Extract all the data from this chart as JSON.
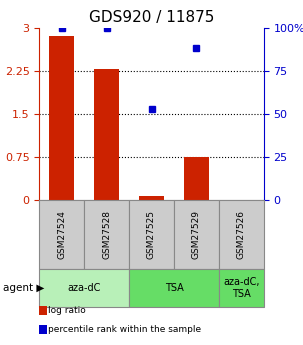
{
  "title": "GDS920 / 11875",
  "samples": [
    "GSM27524",
    "GSM27528",
    "GSM27525",
    "GSM27529",
    "GSM27526"
  ],
  "log_ratio": [
    2.85,
    2.28,
    0.07,
    0.75,
    0.0
  ],
  "percentile_rank": [
    100.0,
    100.0,
    53.0,
    88.0,
    0.0
  ],
  "ylim_left": [
    0,
    3
  ],
  "ylim_right": [
    0,
    100
  ],
  "yticks_left": [
    0,
    0.75,
    1.5,
    2.25,
    3
  ],
  "ytick_labels_left": [
    "0",
    "0.75",
    "1.5",
    "2.25",
    "3"
  ],
  "yticks_right": [
    0,
    25,
    50,
    75,
    100
  ],
  "ytick_labels_right": [
    "0",
    "25",
    "50",
    "75",
    "100%"
  ],
  "hlines": [
    0.75,
    1.5,
    2.25
  ],
  "bar_color": "#cc2200",
  "dot_color": "#0000cc",
  "legend_items": [
    {
      "color": "#cc2200",
      "label": "log ratio"
    },
    {
      "color": "#0000cc",
      "label": "percentile rank within the sample"
    }
  ],
  "bar_width": 0.55,
  "gray_sample_color": "#cccccc",
  "gray_sample_border": "#888888",
  "groups": [
    {
      "indices": [
        0,
        1
      ],
      "label": "aza-dC",
      "color": "#b8f0b8"
    },
    {
      "indices": [
        2,
        3
      ],
      "label": "TSA",
      "color": "#66dd66"
    },
    {
      "indices": [
        4
      ],
      "label": "aza-dC,\nTSA",
      "color": "#66dd66"
    }
  ]
}
